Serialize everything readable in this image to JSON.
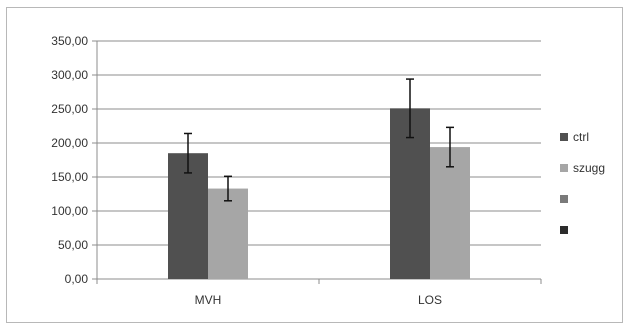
{
  "chart_data": {
    "type": "bar",
    "title": "",
    "xlabel": "",
    "ylabel": "",
    "ylim": [
      0,
      350
    ],
    "yticks": [
      "0,00",
      "50,00",
      "100,00",
      "150,00",
      "200,00",
      "250,00",
      "300,00",
      "350,00"
    ],
    "ytick_values": [
      0,
      50,
      100,
      150,
      200,
      250,
      300,
      350
    ],
    "categories": [
      "MVH",
      "LOS"
    ],
    "grid": true,
    "legend_position": "right",
    "series": [
      {
        "name": "ctrl",
        "color": "#505050",
        "values": [
          185,
          251
        ],
        "error": [
          29,
          43
        ]
      },
      {
        "name": "szugg",
        "color": "#a6a6a6",
        "values": [
          133,
          194
        ],
        "error": [
          18,
          29
        ]
      }
    ],
    "legend_extra_colors": [
      "#7a7a7a",
      "#2c2c2c"
    ]
  }
}
